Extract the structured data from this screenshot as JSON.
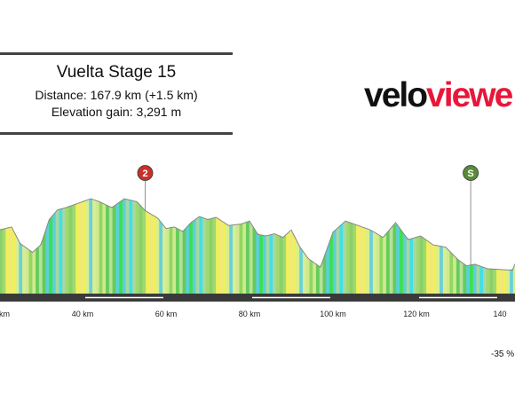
{
  "info": {
    "title": "Vuelta Stage 15",
    "distance": "Distance: 167.9 km (+1.5 km)",
    "elevation": "Elevation gain: 3,291 m"
  },
  "logo": {
    "part1": "velo",
    "part2": "viewe",
    "color1": "#111111",
    "color2": "#e8173a"
  },
  "gradient_label": "-35 %",
  "chart_data": {
    "type": "area",
    "title": "",
    "xlabel": "",
    "ylabel": "",
    "xlim": [
      0,
      168
    ],
    "x_ticks": [
      0,
      40,
      60,
      80,
      100,
      120,
      140
    ],
    "x_tick_labels": [
      "km",
      "40 km",
      "60 km",
      "80 km",
      "100 km",
      "120 km",
      "140"
    ],
    "elevation_profile": {
      "x_km": [
        0,
        3,
        7,
        12,
        16,
        20,
        23,
        25,
        28,
        30,
        32,
        34,
        36,
        38,
        40,
        42,
        44,
        47,
        50,
        53,
        55,
        58,
        60,
        62,
        64,
        66,
        68,
        70,
        72,
        75,
        78,
        80,
        82,
        84,
        86,
        88,
        90,
        92,
        94,
        97,
        100,
        103,
        106,
        109,
        112,
        115,
        118,
        121,
        124,
        127,
        130,
        132,
        134,
        137,
        140,
        143,
        145,
        147,
        150,
        153,
        156,
        160,
        164,
        168
      ],
      "relative_height": [
        0.55,
        0.62,
        0.45,
        0.52,
        0.72,
        0.58,
        0.62,
        0.4,
        0.28,
        0.38,
        0.72,
        0.85,
        0.88,
        0.92,
        0.96,
        1.0,
        0.96,
        0.88,
        1.0,
        0.96,
        0.84,
        0.74,
        0.6,
        0.62,
        0.56,
        0.68,
        0.76,
        0.72,
        0.75,
        0.64,
        0.66,
        0.7,
        0.52,
        0.5,
        0.53,
        0.48,
        0.58,
        0.36,
        0.2,
        0.08,
        0.55,
        0.7,
        0.64,
        0.58,
        0.48,
        0.68,
        0.45,
        0.5,
        0.38,
        0.35,
        0.18,
        0.1,
        0.12,
        0.06,
        0.05,
        0.04,
        0.3,
        0.44,
        0.4,
        0.42,
        0.36,
        0.1,
        0.12,
        0.15
      ]
    },
    "markers": [
      {
        "label": "2",
        "x_km": 55,
        "color": "#c8322a"
      },
      {
        "label": "S",
        "x_km": 133,
        "color": "#5a8a3a"
      }
    ],
    "segment_colors": [
      "#a8d8a0",
      "#88d06a",
      "#f0f05a",
      "#6ad0d8",
      "#d0e890",
      "#b8e098",
      "#5ad0d8",
      "#40e0e8",
      "#a0d870",
      "#f0e87a",
      "#d8ee92",
      "#90d860",
      "#62cc5a",
      "#3ee04a"
    ]
  }
}
